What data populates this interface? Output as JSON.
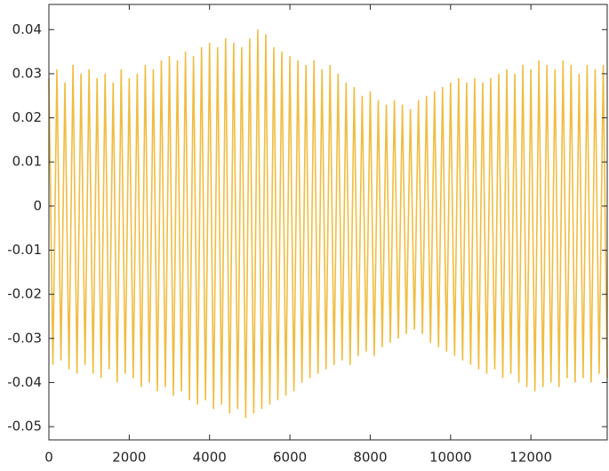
{
  "chart_data": {
    "type": "line",
    "color": "#edb120",
    "x": [
      0,
      100,
      200,
      300,
      400,
      500,
      600,
      700,
      800,
      900,
      1000,
      1100,
      1200,
      1300,
      1400,
      1500,
      1600,
      1700,
      1800,
      1900,
      2000,
      2100,
      2200,
      2300,
      2400,
      2500,
      2600,
      2700,
      2800,
      2900,
      3000,
      3100,
      3200,
      3300,
      3400,
      3500,
      3600,
      3700,
      3800,
      3900,
      4000,
      4100,
      4200,
      4300,
      4400,
      4500,
      4600,
      4700,
      4800,
      4900,
      5000,
      5100,
      5200,
      5300,
      5400,
      5500,
      5600,
      5700,
      5800,
      5900,
      6000,
      6100,
      6200,
      6300,
      6400,
      6500,
      6600,
      6700,
      6800,
      6900,
      7000,
      7100,
      7200,
      7300,
      7400,
      7500,
      7600,
      7700,
      7800,
      7900,
      8000,
      8100,
      8200,
      8300,
      8400,
      8500,
      8600,
      8700,
      8800,
      8900,
      9000,
      9100,
      9200,
      9300,
      9400,
      9500,
      9600,
      9700,
      9800,
      9900,
      10000,
      10100,
      10200,
      10300,
      10400,
      10500,
      10600,
      10700,
      10800,
      10900,
      11000,
      11100,
      11200,
      11300,
      11400,
      11500,
      11600,
      11700,
      11800,
      11900,
      12000,
      12100,
      12200,
      12300,
      12400,
      12500,
      12600,
      12700,
      12800,
      12900,
      13000,
      13100,
      13200,
      13300,
      13400,
      13500,
      13600,
      13700,
      13800,
      13900
    ],
    "values": [
      0.029,
      -0.036,
      0.031,
      -0.035,
      0.028,
      -0.037,
      0.032,
      -0.038,
      0.03,
      -0.036,
      0.031,
      -0.038,
      0.029,
      -0.039,
      0.03,
      -0.037,
      0.028,
      -0.04,
      0.031,
      -0.038,
      0.029,
      -0.039,
      0.03,
      -0.041,
      0.032,
      -0.04,
      0.031,
      -0.042,
      0.033,
      -0.041,
      0.034,
      -0.043,
      0.033,
      -0.042,
      0.035,
      -0.044,
      0.034,
      -0.045,
      0.036,
      -0.044,
      0.037,
      -0.046,
      0.036,
      -0.045,
      0.038,
      -0.047,
      0.037,
      -0.046,
      0.036,
      -0.048,
      0.038,
      -0.047,
      0.04,
      -0.046,
      0.039,
      -0.045,
      0.036,
      -0.044,
      0.035,
      -0.043,
      0.034,
      -0.042,
      0.033,
      -0.04,
      0.032,
      -0.039,
      0.033,
      -0.038,
      0.031,
      -0.037,
      0.032,
      -0.036,
      0.03,
      -0.035,
      0.028,
      -0.036,
      0.027,
      -0.034,
      0.025,
      -0.033,
      0.026,
      -0.034,
      0.024,
      -0.032,
      0.023,
      -0.031,
      0.024,
      -0.03,
      0.023,
      -0.029,
      0.022,
      -0.028,
      0.024,
      -0.029,
      0.025,
      -0.031,
      0.026,
      -0.032,
      0.027,
      -0.033,
      0.028,
      -0.034,
      0.029,
      -0.035,
      0.028,
      -0.036,
      0.029,
      -0.037,
      0.028,
      -0.038,
      0.029,
      -0.037,
      0.03,
      -0.039,
      0.031,
      -0.038,
      0.03,
      -0.04,
      0.032,
      -0.041,
      0.031,
      -0.042,
      0.033,
      -0.041,
      0.032,
      -0.04,
      0.031,
      -0.041,
      0.033,
      -0.039,
      0.032,
      -0.04,
      0.03,
      -0.039,
      0.032,
      -0.04,
      0.031,
      -0.038,
      0.032,
      -0.039
    ],
    "xlim": [
      0,
      13900
    ],
    "xticks": [
      0,
      2000,
      4000,
      6000,
      8000,
      10000,
      12000
    ],
    "ylim": [
      -0.053,
      0.0457
    ],
    "yticks": [
      -0.05,
      -0.04,
      -0.03,
      -0.02,
      -0.01,
      0,
      0.01,
      0.02,
      0.03,
      0.04
    ],
    "grid": false
  }
}
